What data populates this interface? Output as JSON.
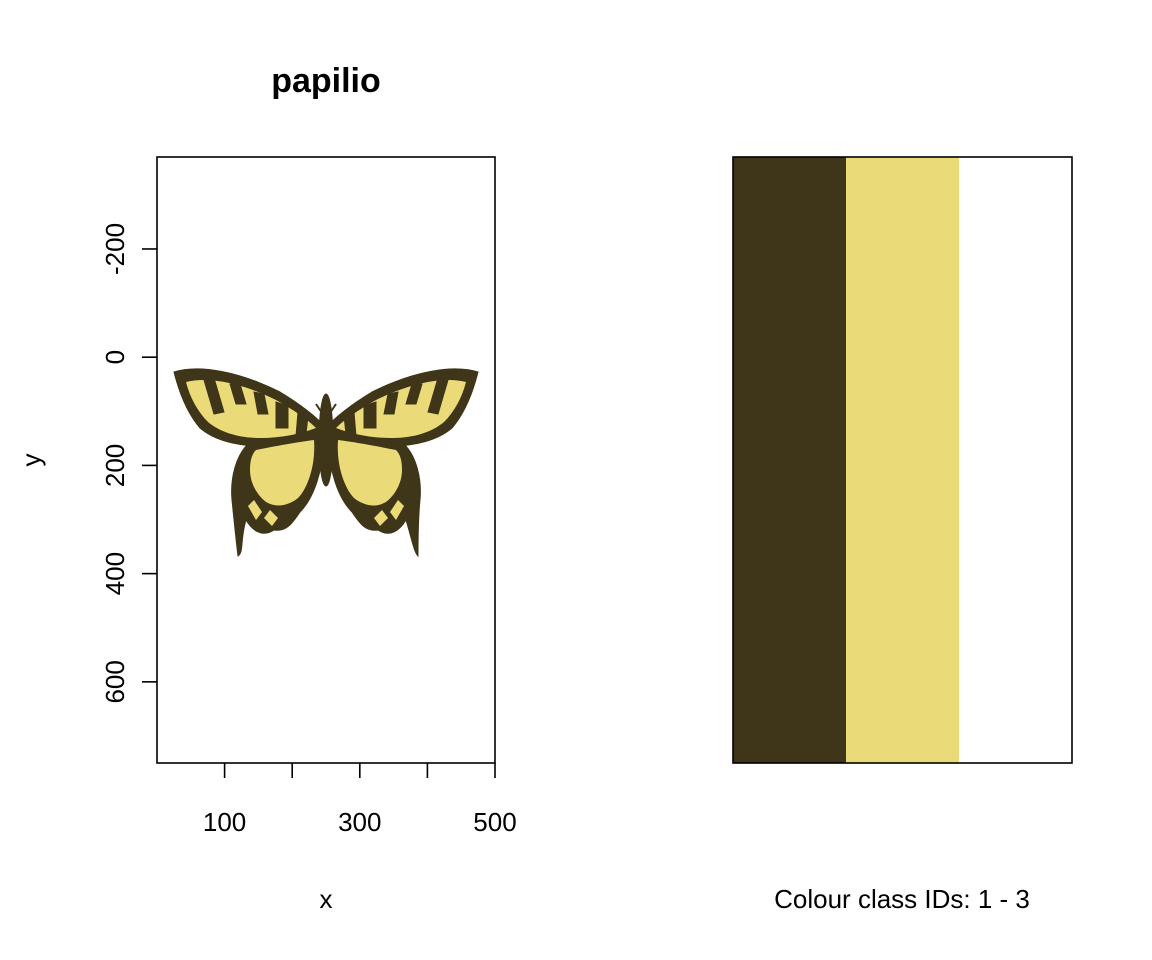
{
  "colors": {
    "dark": "#3F3519",
    "yellow": "#EBDB78",
    "white": "#FFFFFF"
  },
  "chart_data": [
    {
      "type": "image",
      "title": "papilio",
      "xlabel": "x",
      "ylabel": "y",
      "xlim": [
        0,
        500
      ],
      "ylim": [
        750,
        -370
      ],
      "x_ticks": [
        0,
        100,
        200,
        300,
        400,
        500
      ],
      "x_tick_labels": [
        "",
        "100",
        "",
        "300",
        "",
        "500"
      ],
      "y_ticks": [
        -200,
        0,
        200,
        400,
        600
      ],
      "y_tick_labels": [
        "-200",
        "0",
        "200",
        "400",
        "600"
      ],
      "image_extent": {
        "x": [
          0,
          500
        ],
        "y": [
          0,
          400
        ]
      },
      "content": "recoloured swallowtail butterfly image (dark + yellow classes on white)"
    },
    {
      "type": "bar",
      "categories": [
        "1",
        "2",
        "3"
      ],
      "values": [
        1,
        1,
        1
      ],
      "bar_colors": [
        "#3F3519",
        "#EBDB78",
        "#FFFFFF"
      ],
      "xlabel": "Colour class IDs: 1 - 3"
    }
  ]
}
